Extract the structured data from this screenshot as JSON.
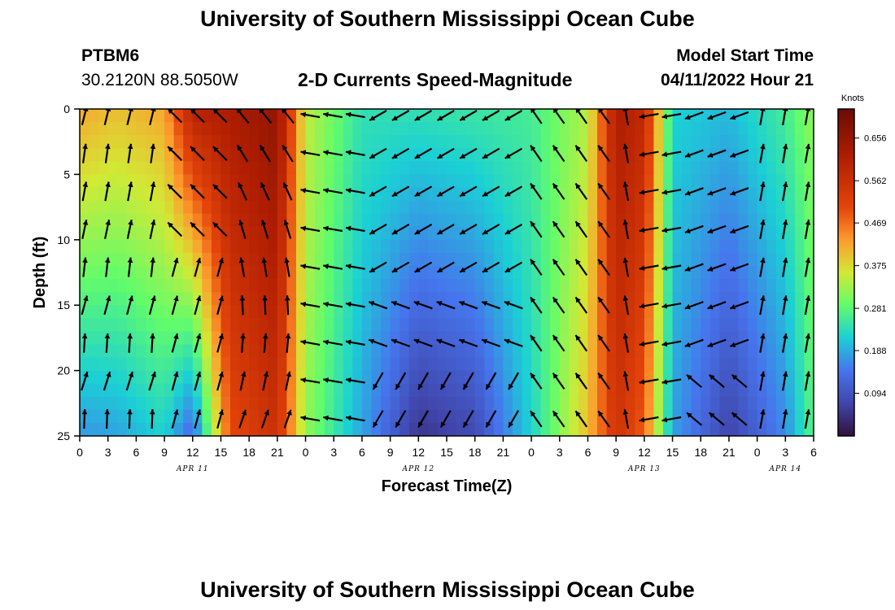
{
  "title_top": "University of Southern Mississippi Ocean Cube",
  "title_bottom": "University of Southern Mississippi Ocean Cube",
  "station": {
    "id": "PTBM6",
    "location": "30.2120N  88.5050W"
  },
  "model": {
    "label": "Model Start Time",
    "time": "04/11/2022 Hour 21"
  },
  "chart_data": {
    "type": "heatmap",
    "title": "2-D Currents Speed-Magnitude",
    "xlabel": "Forecast Time(Z)",
    "ylabel": "Depth (ft)",
    "x_range_hours": [
      0,
      78
    ],
    "y_range_ft": [
      0,
      25
    ],
    "y_ticks": [
      "0",
      "5",
      "10",
      "15",
      "20",
      "25"
    ],
    "x_ticks": [
      "0",
      "3",
      "6",
      "9",
      "12",
      "15",
      "18",
      "21",
      "0",
      "3",
      "6",
      "9",
      "12",
      "15",
      "18",
      "21",
      "0",
      "3",
      "6",
      "9",
      "12",
      "15",
      "18",
      "21",
      "0",
      "3",
      "6"
    ],
    "date_labels": [
      {
        "text": "APR 11",
        "hour": 12
      },
      {
        "text": "APR 12",
        "hour": 36
      },
      {
        "text": "APR 13",
        "hour": 60
      },
      {
        "text": "APR 14",
        "hour": 75
      }
    ],
    "colorbar": {
      "units": "Knots",
      "min": 0.0,
      "max": 0.72,
      "tick_values": [
        "0.656",
        "0.562",
        "0.469",
        "0.375",
        "0.281",
        "0.188",
        "0.094"
      ]
    },
    "speed_profile_knots": [
      {
        "hour": 0,
        "surface": 0.42,
        "bottom": 0.17
      },
      {
        "hour": 4,
        "surface": 0.4,
        "bottom": 0.18
      },
      {
        "hour": 9,
        "surface": 0.42,
        "bottom": 0.22
      },
      {
        "hour": 12,
        "surface": 0.6,
        "bottom": 0.12
      },
      {
        "hour": 16,
        "surface": 0.62,
        "bottom": 0.5
      },
      {
        "hour": 21,
        "surface": 0.66,
        "bottom": 0.56
      },
      {
        "hour": 24,
        "surface": 0.35,
        "bottom": 0.32
      },
      {
        "hour": 30,
        "surface": 0.24,
        "bottom": 0.18
      },
      {
        "hour": 36,
        "surface": 0.24,
        "bottom": 0.05
      },
      {
        "hour": 42,
        "surface": 0.25,
        "bottom": 0.08
      },
      {
        "hour": 48,
        "surface": 0.26,
        "bottom": 0.22
      },
      {
        "hour": 54,
        "surface": 0.34,
        "bottom": 0.4
      },
      {
        "hour": 57,
        "surface": 0.62,
        "bottom": 0.55
      },
      {
        "hour": 60,
        "surface": 0.58,
        "bottom": 0.48
      },
      {
        "hour": 63,
        "surface": 0.22,
        "bottom": 0.18
      },
      {
        "hour": 69,
        "surface": 0.2,
        "bottom": 0.07
      },
      {
        "hour": 75,
        "surface": 0.26,
        "bottom": 0.16
      },
      {
        "hour": 78,
        "surface": 0.32,
        "bottom": 0.28
      }
    ]
  }
}
